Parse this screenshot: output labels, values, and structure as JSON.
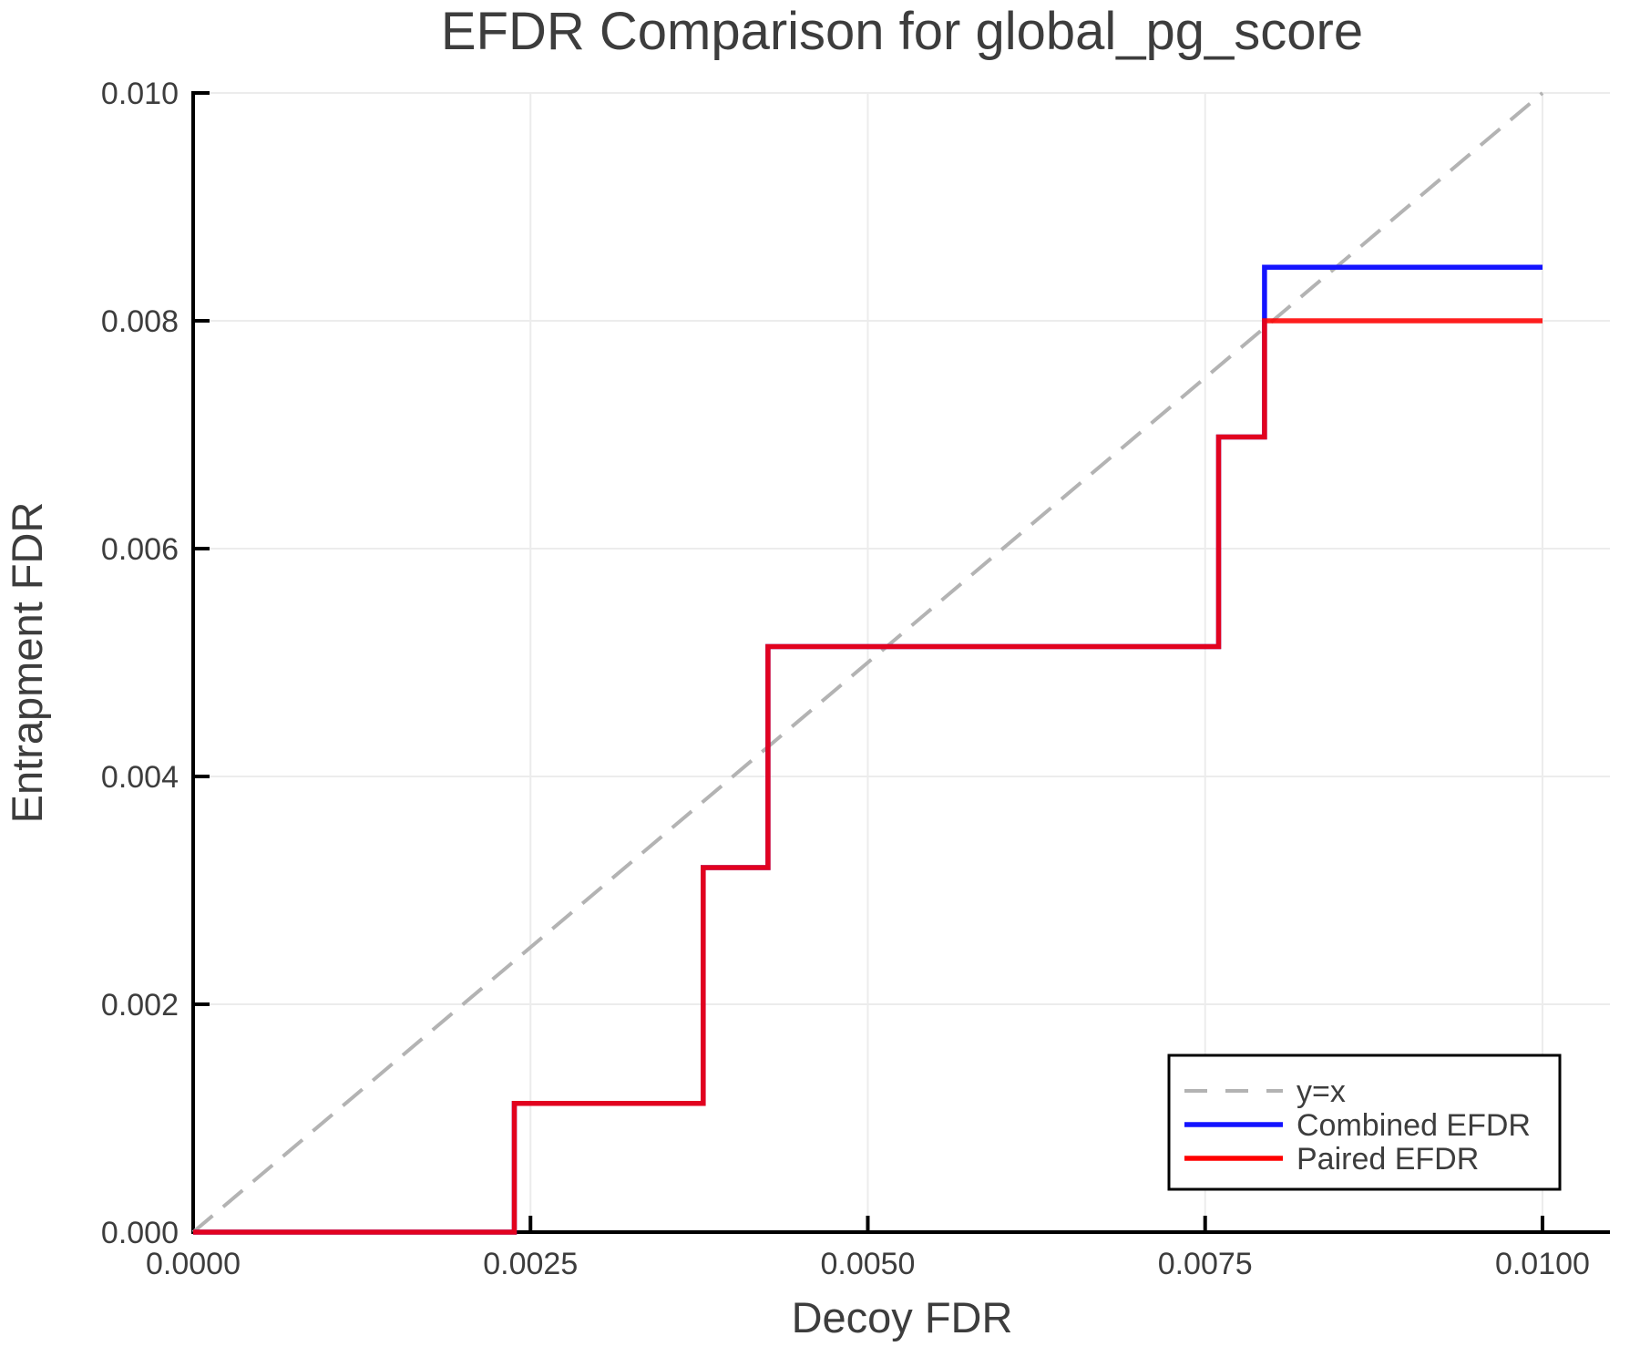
{
  "title": "EFDR Comparison for global_pg_score",
  "axes": {
    "x": {
      "label": "Decoy FDR",
      "min": 0,
      "max": 0.0105,
      "ticks": [
        {
          "v": 0.0,
          "label": "0.0000"
        },
        {
          "v": 0.0025,
          "label": "0.0025"
        },
        {
          "v": 0.005,
          "label": "0.0050"
        },
        {
          "v": 0.0075,
          "label": "0.0075"
        },
        {
          "v": 0.01,
          "label": "0.0100"
        }
      ]
    },
    "y": {
      "label": "Entrapment FDR",
      "min": 0,
      "max": 0.01,
      "ticks": [
        {
          "v": 0.0,
          "label": "0.000"
        },
        {
          "v": 0.002,
          "label": "0.002"
        },
        {
          "v": 0.004,
          "label": "0.004"
        },
        {
          "v": 0.006,
          "label": "0.006"
        },
        {
          "v": 0.008,
          "label": "0.008"
        },
        {
          "v": 0.01,
          "label": "0.010"
        }
      ]
    }
  },
  "legend": {
    "entries": [
      {
        "label": "y=x",
        "color": "#b3b3b3",
        "dashed": true
      },
      {
        "label": "Combined EFDR",
        "color": "#1414ff",
        "dashed": false
      },
      {
        "label": "Paired EFDR",
        "color": "#ff0000",
        "dashed": false
      }
    ]
  },
  "colors": {
    "grid": "#ececec",
    "spine": "#000000",
    "text": "#3d3d3d",
    "identity_line": "#b3b3b3",
    "combined_efdr": "#1414ff",
    "paired_efdr": "#ff0000"
  },
  "chart_data": {
    "type": "line",
    "title": "EFDR Comparison for global_pg_score",
    "xlabel": "Decoy FDR",
    "ylabel": "Entrapment FDR",
    "xlim": [
      0,
      0.0105
    ],
    "ylim": [
      0,
      0.01
    ],
    "grid": true,
    "legend_position": "lower right",
    "series": [
      {
        "name": "y=x",
        "color": "#b3b3b3",
        "style": "dashed",
        "width": 4,
        "points": [
          [
            0,
            0
          ],
          [
            0.01,
            0.01
          ]
        ]
      },
      {
        "name": "Combined EFDR",
        "color": "#1414ff",
        "style": "solid",
        "width": 5.5,
        "points": [
          [
            0,
            0
          ],
          [
            0.00238,
            0
          ],
          [
            0.00238,
            0.00113
          ],
          [
            0.00378,
            0.00113
          ],
          [
            0.00378,
            0.0032
          ],
          [
            0.00426,
            0.0032
          ],
          [
            0.00426,
            0.00514
          ],
          [
            0.0076,
            0.00514
          ],
          [
            0.0076,
            0.00698
          ],
          [
            0.00794,
            0.00698
          ],
          [
            0.00794,
            0.00847
          ],
          [
            0.01,
            0.00847
          ]
        ]
      },
      {
        "name": "Paired EFDR",
        "color": "#ff0000",
        "style": "solid",
        "width": 5.5,
        "alpha": 0.88,
        "points": [
          [
            0,
            0
          ],
          [
            0.00238,
            0
          ],
          [
            0.00238,
            0.00113
          ],
          [
            0.00378,
            0.00113
          ],
          [
            0.00378,
            0.0032
          ],
          [
            0.00426,
            0.0032
          ],
          [
            0.00426,
            0.00514
          ],
          [
            0.0076,
            0.00514
          ],
          [
            0.0076,
            0.00698
          ],
          [
            0.00794,
            0.00698
          ],
          [
            0.00794,
            0.008
          ],
          [
            0.01,
            0.008
          ]
        ]
      }
    ]
  }
}
